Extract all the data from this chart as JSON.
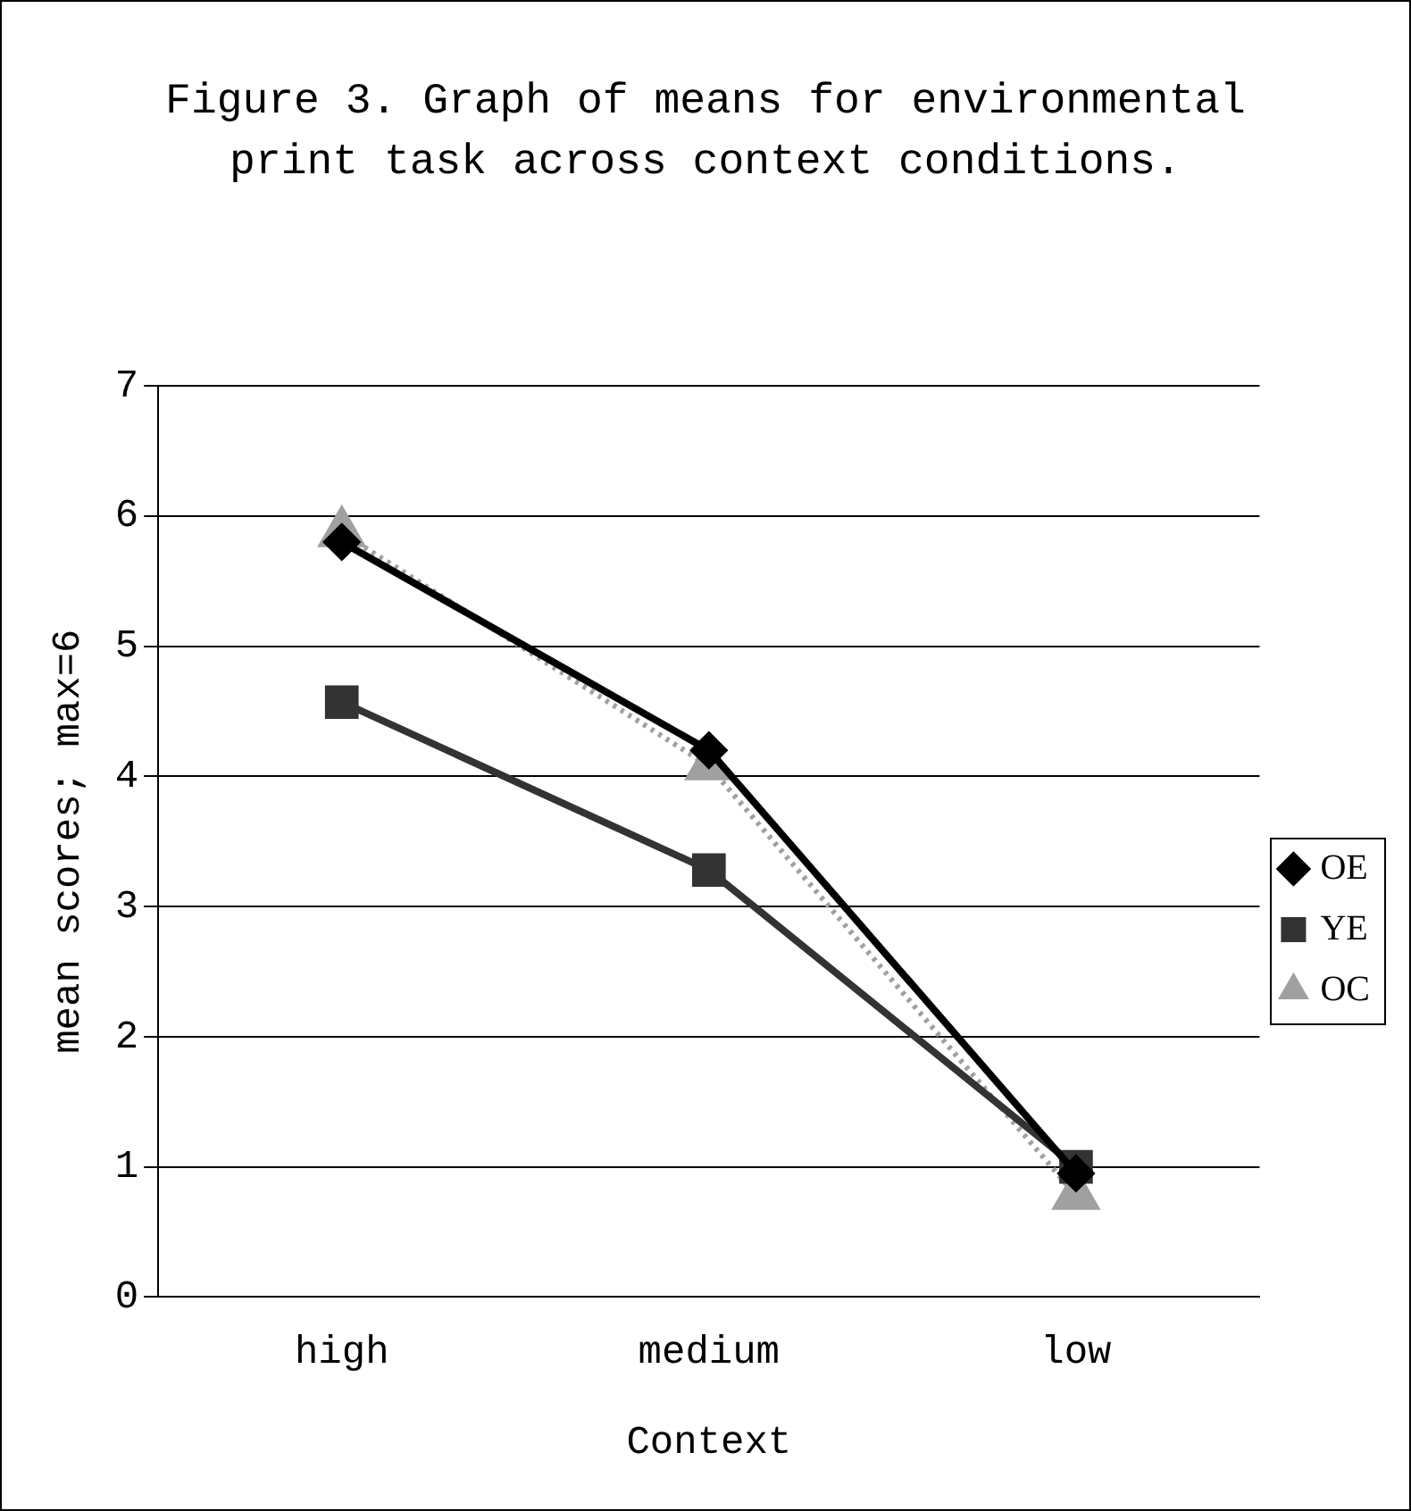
{
  "chart_data": {
    "type": "line",
    "title": "Figure 3. Graph of means for environmental print task across context conditions.",
    "xlabel": "Context",
    "ylabel": "mean scores; max=6",
    "categories": [
      "high",
      "medium",
      "low"
    ],
    "series": [
      {
        "name": "OE",
        "color": "#000000",
        "marker": "diamond",
        "line_style": "solid",
        "values": [
          5.8,
          4.2,
          0.95
        ]
      },
      {
        "name": "YE",
        "color": "#333333",
        "marker": "square",
        "line_style": "solid",
        "values": [
          4.57,
          3.28,
          1.0
        ]
      },
      {
        "name": "OC",
        "color": "#a0a0a0",
        "marker": "triangle",
        "line_style": "dotted",
        "values": [
          5.87,
          4.08,
          0.78
        ]
      }
    ],
    "ylim": [
      0,
      7
    ],
    "yticks": [
      0,
      1,
      2,
      3,
      4,
      5,
      6,
      7
    ],
    "grid": "y",
    "legend": "right"
  }
}
